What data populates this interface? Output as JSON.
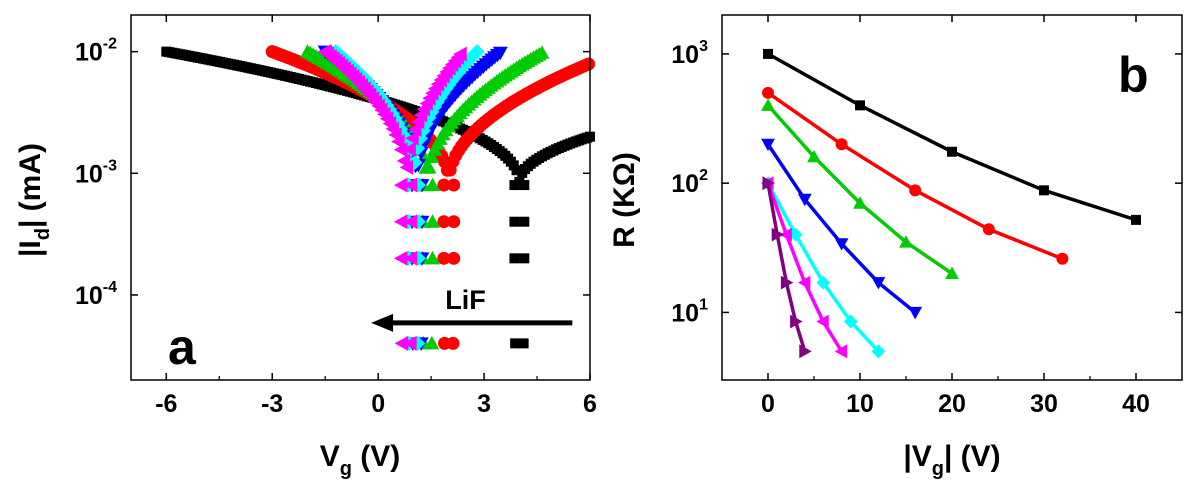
{
  "colors": {
    "black": "#000000",
    "red": "#ff0000",
    "green": "#00cc00",
    "blue": "#0000ff",
    "cyan": "#00ffff",
    "magenta": "#ff00ff",
    "purple": "#800080"
  },
  "chart_data": [
    {
      "type": "scatter",
      "panel_label": "a",
      "xlabel": "V",
      "xlabel_sub": "g",
      "xlabel_unit": " (V)",
      "ylabel": "|I",
      "ylabel_sub": "d",
      "ylabel_unit": "| (mA)",
      "xlim": [
        -7,
        6
      ],
      "ylim": [
        2e-05,
        0.02
      ],
      "yscale": "log",
      "xticks": [
        -6,
        -3,
        0,
        3,
        6
      ],
      "xtick_labels": [
        "-6",
        "-3",
        "0",
        "3",
        "6"
      ],
      "yticks": [
        0.0001,
        0.001,
        0.01
      ],
      "ytick_labels": [
        {
          "base": "10",
          "exp": "-4"
        },
        {
          "base": "10",
          "exp": "-3"
        },
        {
          "base": "10",
          "exp": "-2"
        }
      ],
      "annotation": "LiF",
      "arrow": {
        "from": [
          5.5,
          5.9e-05
        ],
        "to": [
          -0.2,
          5.9e-05
        ]
      },
      "series": [
        {
          "color": "black",
          "marker": "square",
          "vmin": 4.0,
          "v_left": -6.0,
          "v_right": 6.0,
          "i_left": 0.01,
          "i_right": 0.002
        },
        {
          "color": "red",
          "marker": "circle",
          "vmin": 2.0,
          "v_left": -3.0,
          "v_right": 6.0,
          "i_left": 0.01,
          "i_right": 0.008
        },
        {
          "color": "green",
          "marker": "triangle-up",
          "vmin": 1.4,
          "v_left": -2.0,
          "v_right": 4.7,
          "i_left": 0.01,
          "i_right": 0.01
        },
        {
          "color": "blue",
          "marker": "triangle-down",
          "vmin": 1.1,
          "v_left": -1.5,
          "v_right": 3.5,
          "i_left": 0.01,
          "i_right": 0.01
        },
        {
          "color": "cyan",
          "marker": "diamond",
          "vmin": 1.0,
          "v_left": -1.2,
          "v_right": 2.8,
          "i_left": 0.01,
          "i_right": 0.01
        },
        {
          "color": "magenta",
          "marker": "triangle-left",
          "vmin": 0.8,
          "v_left": -1.5,
          "v_right": 2.4,
          "i_left": 0.01,
          "i_right": 0.01
        }
      ]
    },
    {
      "type": "line",
      "panel_label": "b",
      "xlabel": "|V",
      "xlabel_sub": "g",
      "xlabel_unit": "| (V)",
      "ylabel": "R (KΩ)",
      "xlim": [
        -5,
        45
      ],
      "ylim": [
        3,
        2000
      ],
      "yscale": "log",
      "xticks": [
        0,
        10,
        20,
        30,
        40
      ],
      "xtick_labels": [
        "0",
        "10",
        "20",
        "30",
        "40"
      ],
      "yticks": [
        10,
        100,
        1000
      ],
      "ytick_labels": [
        {
          "base": "10",
          "exp": "1"
        },
        {
          "base": "10",
          "exp": "2"
        },
        {
          "base": "10",
          "exp": "3"
        }
      ],
      "series": [
        {
          "color": "black",
          "marker": "square",
          "x": [
            0,
            10,
            20,
            30,
            40
          ],
          "y": [
            1000,
            400,
            175,
            88,
            52
          ]
        },
        {
          "color": "red",
          "marker": "circle",
          "x": [
            0,
            8,
            16,
            24,
            32
          ],
          "y": [
            500,
            200,
            88,
            44,
            26
          ]
        },
        {
          "color": "green",
          "marker": "triangle-up",
          "x": [
            0,
            5,
            10,
            15,
            20
          ],
          "y": [
            400,
            160,
            70,
            35,
            20
          ]
        },
        {
          "color": "blue",
          "marker": "triangle-down",
          "x": [
            0,
            4,
            8,
            12,
            16
          ],
          "y": [
            200,
            75,
            34,
            17,
            10
          ]
        },
        {
          "color": "cyan",
          "marker": "diamond",
          "x": [
            0,
            3,
            6,
            9,
            12
          ],
          "y": [
            100,
            40,
            17,
            8.5,
            5
          ]
        },
        {
          "color": "magenta",
          "marker": "triangle-left",
          "x": [
            0,
            2,
            4,
            6,
            8
          ],
          "y": [
            100,
            40,
            17,
            8.5,
            5
          ]
        },
        {
          "color": "purple",
          "marker": "triangle-right",
          "x": [
            0,
            1,
            2,
            3,
            4
          ],
          "y": [
            100,
            40,
            17,
            8.5,
            5
          ]
        }
      ]
    }
  ]
}
